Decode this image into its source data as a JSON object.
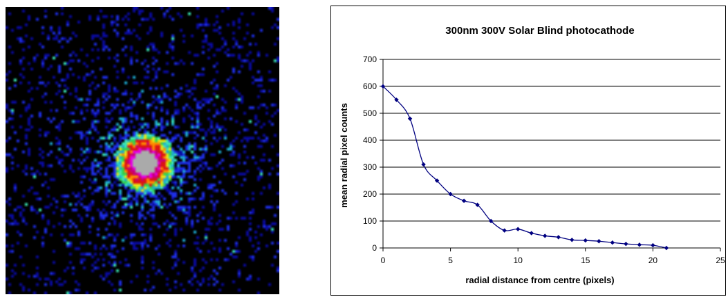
{
  "colors": {
    "series": "#000080",
    "gridline": "#000000",
    "image_background": "#000000",
    "image_palette": [
      "#000000",
      "#0a0aa0",
      "#1e2ee6",
      "#1eaad2",
      "#3ce6b4",
      "#32d250",
      "#e6e614",
      "#ff8c00",
      "#dc1414",
      "#c80078",
      "#e600e6",
      "#aaaaaa"
    ]
  },
  "image": {
    "description_hint": "",
    "palette_levels": 12
  },
  "chart_data": {
    "type": "scatter",
    "title": "300nm 300V Solar Blind photocathode",
    "xlabel": "radial distance from centre (pixels)",
    "ylabel": "mean radial pixel counts",
    "xlim": [
      0,
      25
    ],
    "ylim": [
      0,
      700
    ],
    "xticks": [
      0,
      5,
      10,
      15,
      20,
      25
    ],
    "yticks": [
      0,
      100,
      200,
      300,
      400,
      500,
      600,
      700
    ],
    "grid": "horizontal",
    "legend": "none",
    "line": "smoothed",
    "marker": "diamond",
    "series": [
      {
        "x": [
          0,
          1,
          2,
          3,
          4,
          5,
          6,
          7,
          8,
          9,
          10,
          11,
          12,
          13,
          14,
          15,
          16,
          17,
          18,
          19,
          20,
          21
        ],
        "y": [
          600,
          550,
          480,
          310,
          250,
          200,
          175,
          160,
          100,
          65,
          70,
          55,
          45,
          40,
          30,
          28,
          25,
          20,
          15,
          12,
          10,
          0
        ]
      }
    ]
  }
}
